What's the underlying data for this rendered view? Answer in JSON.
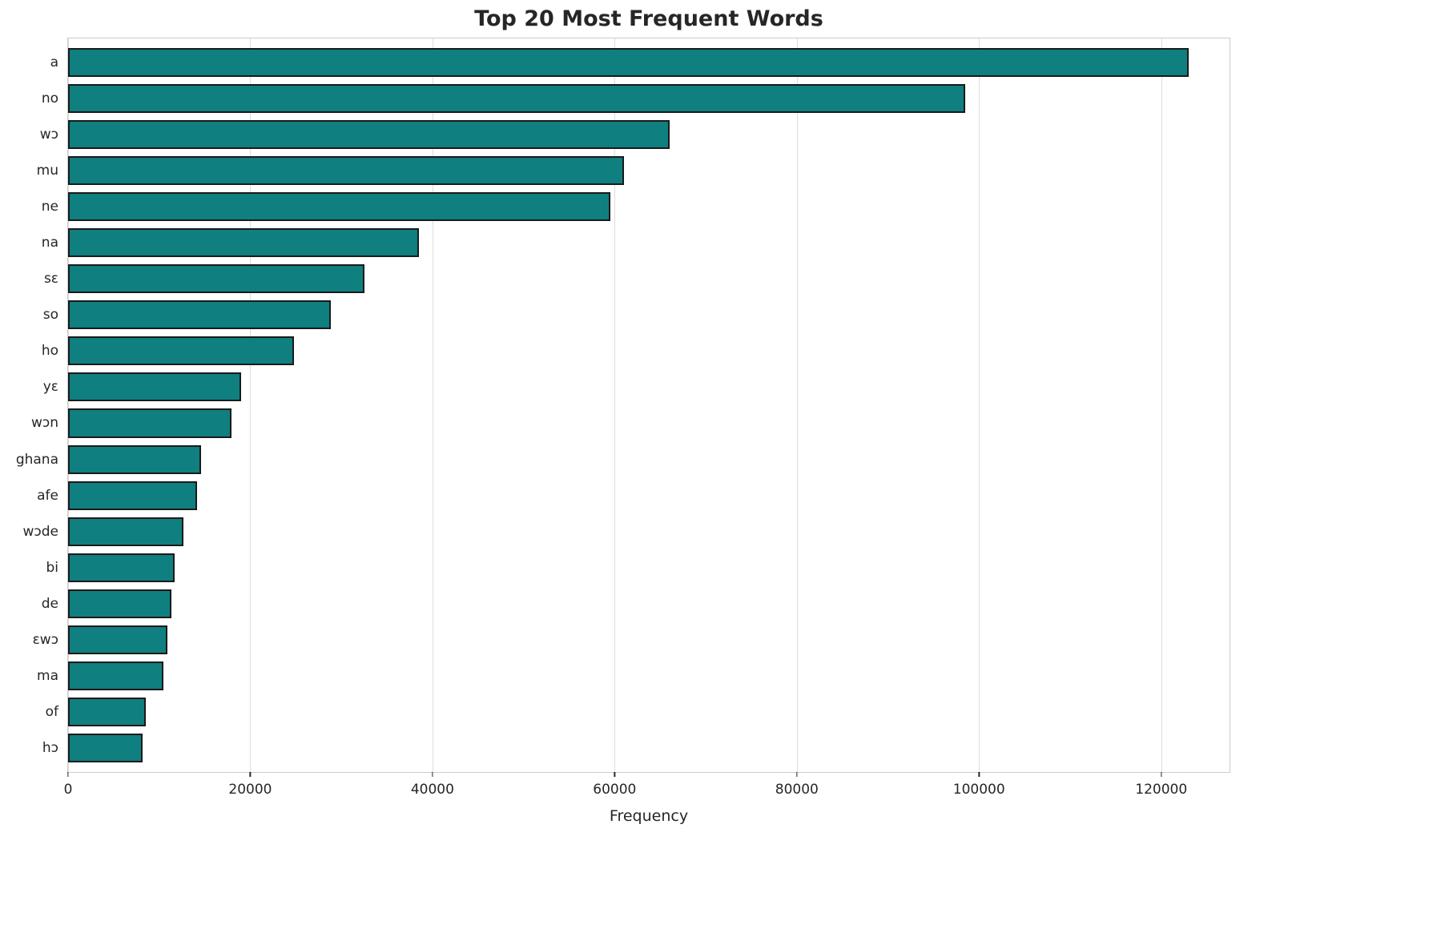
{
  "chart_data": {
    "type": "bar",
    "orientation": "horizontal",
    "title": "Top 20 Most Frequent Words",
    "xlabel": "Frequency",
    "ylabel": "",
    "categories": [
      "a",
      "no",
      "wɔ",
      "mu",
      "ne",
      "na",
      "sɛ",
      "so",
      "ho",
      "yɛ",
      "wɔn",
      "ghana",
      "afe",
      "wɔde",
      "bi",
      "de",
      "ɛwɔ",
      "ma",
      "of",
      "hɔ"
    ],
    "values": [
      123000,
      98500,
      66000,
      61000,
      59500,
      38500,
      32500,
      28800,
      24800,
      19000,
      17900,
      14600,
      14200,
      12700,
      11700,
      11300,
      10900,
      10500,
      8500,
      8200
    ],
    "xlim": [
      0,
      127500
    ],
    "xticks": [
      0,
      20000,
      40000,
      60000,
      80000,
      100000,
      120000
    ],
    "xtick_labels": [
      "0",
      "20000",
      "40000",
      "60000",
      "80000",
      "100000",
      "120000"
    ],
    "grid": "vertical",
    "legend": "none",
    "bar_color": "#0f7f7f",
    "bar_edge_color": "#1a1a1a"
  }
}
